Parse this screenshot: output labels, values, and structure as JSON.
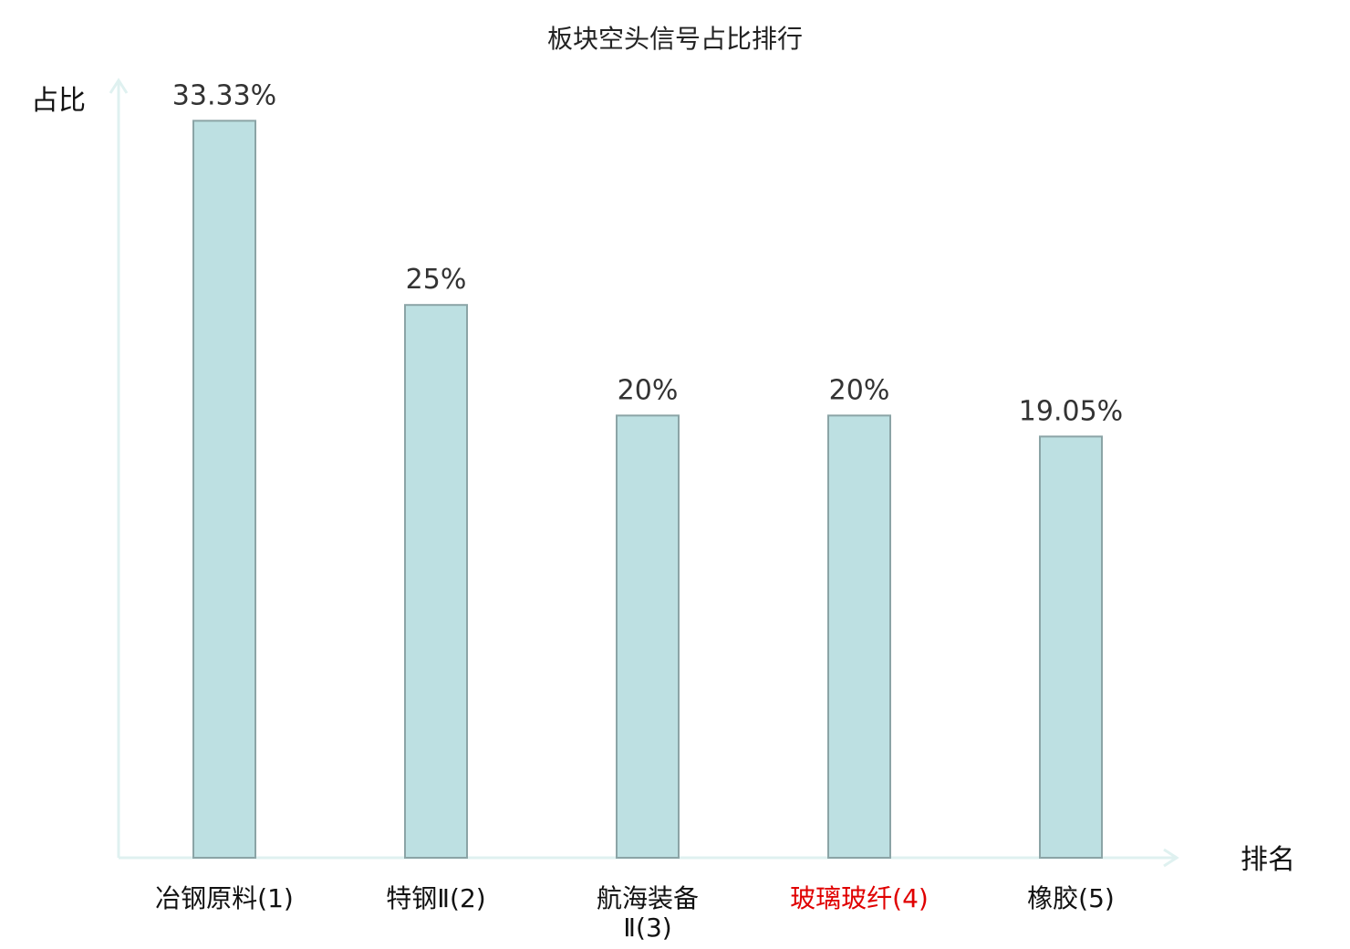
{
  "chart_data": {
    "type": "bar",
    "title": "板块空头信号占比排行",
    "ylabel": "占比",
    "xlabel": "排名",
    "categories": [
      {
        "lines": [
          "冶钢原料(1)"
        ],
        "highlight": false
      },
      {
        "lines": [
          "特钢Ⅱ(2)"
        ],
        "highlight": false
      },
      {
        "lines": [
          "航海装备",
          "Ⅱ(3)"
        ],
        "highlight": false
      },
      {
        "lines": [
          "玻璃玻纤(4)"
        ],
        "highlight": true
      },
      {
        "lines": [
          "橡胶(5)"
        ],
        "highlight": false
      }
    ],
    "values": [
      33.33,
      25,
      20,
      20,
      19.05
    ],
    "value_labels": [
      "33.33%",
      "25%",
      "20%",
      "20%",
      "19.05%"
    ],
    "ylim": [
      0,
      34.5
    ],
    "grid": false,
    "colors": {
      "bar_fill": "#bde0e2",
      "bar_stroke": "#8ba4a6",
      "axis": "#dff1f0",
      "highlight_text": "#e00000",
      "normal_text": "#111111"
    }
  }
}
